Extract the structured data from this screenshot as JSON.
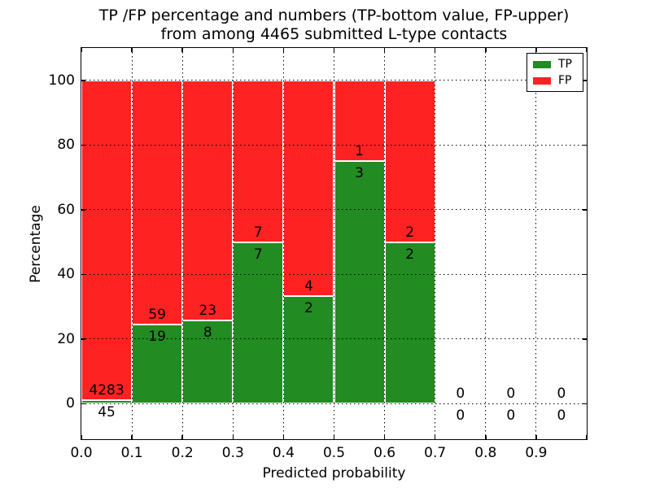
{
  "title": {
    "line1": "TP /FP percentage and numbers (TP-bottom value, FP-upper)",
    "line2": "from among 4465 submitted L-type contacts"
  },
  "axes": {
    "xlabel": "Predicted probability",
    "ylabel": "Percentage"
  },
  "legend": {
    "position": "upper right",
    "items": [
      {
        "label": "TP",
        "color": "#228b22"
      },
      {
        "label": "FP",
        "color": "#ff2222"
      }
    ]
  },
  "chart_data": {
    "type": "bar",
    "stacked": true,
    "normalized_to": "100 percent per bin",
    "title": "TP /FP percentage and numbers (TP-bottom value, FP-upper) from among 4465 submitted L-type contacts",
    "xlabel": "Predicted probability",
    "ylabel": "Percentage",
    "total_contacts": 4465,
    "bin_edges": [
      0.0,
      0.1,
      0.2,
      0.3,
      0.4,
      0.5,
      0.6,
      0.7,
      0.8,
      0.9,
      1.0
    ],
    "series": [
      {
        "name": "TP",
        "color": "#228b22",
        "counts": [
          45,
          19,
          8,
          7,
          2,
          3,
          2,
          0,
          0,
          0
        ]
      },
      {
        "name": "FP",
        "color": "#ff2222",
        "counts": [
          4283,
          59,
          23,
          7,
          4,
          1,
          2,
          0,
          0,
          0
        ]
      }
    ],
    "bins": [
      {
        "range": [
          0.0,
          0.1
        ],
        "tp": 45,
        "fp": 4283,
        "tp_pct": 1.04,
        "fp_pct": 98.96
      },
      {
        "range": [
          0.1,
          0.2
        ],
        "tp": 19,
        "fp": 59,
        "tp_pct": 24.36,
        "fp_pct": 75.64
      },
      {
        "range": [
          0.2,
          0.3
        ],
        "tp": 8,
        "fp": 23,
        "tp_pct": 25.81,
        "fp_pct": 74.19
      },
      {
        "range": [
          0.3,
          0.4
        ],
        "tp": 7,
        "fp": 7,
        "tp_pct": 50.0,
        "fp_pct": 50.0
      },
      {
        "range": [
          0.4,
          0.5
        ],
        "tp": 2,
        "fp": 4,
        "tp_pct": 33.33,
        "fp_pct": 66.67
      },
      {
        "range": [
          0.5,
          0.6
        ],
        "tp": 3,
        "fp": 1,
        "tp_pct": 75.0,
        "fp_pct": 25.0
      },
      {
        "range": [
          0.6,
          0.7
        ],
        "tp": 2,
        "fp": 2,
        "tp_pct": 50.0,
        "fp_pct": 50.0
      },
      {
        "range": [
          0.7,
          0.8
        ],
        "tp": 0,
        "fp": 0,
        "tp_pct": null,
        "fp_pct": null
      },
      {
        "range": [
          0.8,
          0.9
        ],
        "tp": 0,
        "fp": 0,
        "tp_pct": null,
        "fp_pct": null
      },
      {
        "range": [
          0.9,
          1.0
        ],
        "tp": 0,
        "fp": 0,
        "tp_pct": null,
        "fp_pct": null
      }
    ],
    "x_ticks": [
      "0.0",
      "0.1",
      "0.2",
      "0.3",
      "0.4",
      "0.5",
      "0.6",
      "0.7",
      "0.8",
      "0.9"
    ],
    "y_ticks": [
      "0",
      "20",
      "40",
      "60",
      "80",
      "100"
    ],
    "xlim": [
      0.0,
      1.0
    ],
    "ylim": [
      -11,
      110
    ],
    "grid": "dotted black, on top of bars",
    "legend_position": "upper right",
    "colors": {
      "tp": "#228b22",
      "fp": "#ff2222",
      "edge": "#ffffff",
      "grid": "#000000",
      "background": "#ffffff"
    }
  }
}
